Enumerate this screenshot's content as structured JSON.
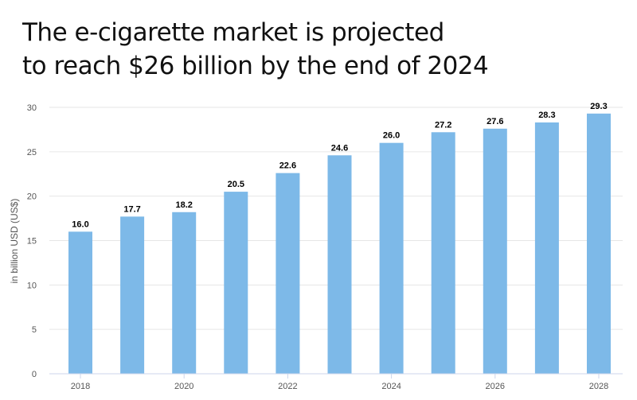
{
  "chart_data": {
    "type": "bar",
    "title_lines": [
      "The e-cigarette market is projected",
      "to reach $26 billion by the end of 2024"
    ],
    "categories": [
      "2018",
      "2019",
      "2020",
      "2021",
      "2022",
      "2023",
      "2024",
      "2025",
      "2026",
      "2027",
      "2028"
    ],
    "x_tick_labels": [
      "2018",
      "2020",
      "2022",
      "2024",
      "2026",
      "2028"
    ],
    "values": [
      16.0,
      17.7,
      18.2,
      20.5,
      22.6,
      24.6,
      26.0,
      27.2,
      27.6,
      28.3,
      29.3
    ],
    "data_labels": [
      "16.0",
      "17.7",
      "18.2",
      "20.5",
      "22.6",
      "24.6",
      "26.0",
      "27.2",
      "27.6",
      "28.3",
      "29.3"
    ],
    "xlabel": "",
    "ylabel": "in billion USD (US$)",
    "ylim": [
      0,
      30
    ],
    "yticks": [
      0,
      5,
      10,
      15,
      20,
      25,
      30
    ],
    "grid": true,
    "legend": "none",
    "colors": {
      "bar": "#7db9e8",
      "grid": "#e6e6e6",
      "axis": "#ccd6eb",
      "text": "#555555"
    }
  }
}
